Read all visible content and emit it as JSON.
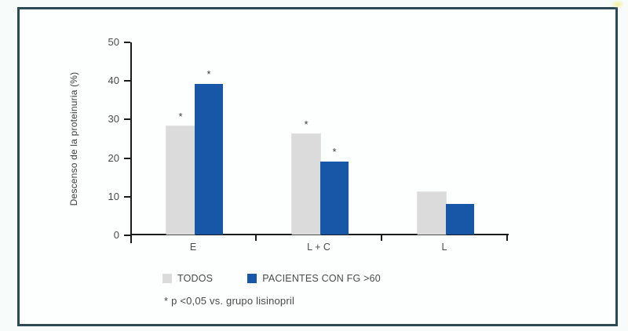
{
  "chart_data": {
    "type": "bar",
    "categories": [
      "E",
      "L + C",
      "L"
    ],
    "series": [
      {
        "name": "TODOS",
        "color": "#dbdbdb",
        "values": [
          28,
          26,
          11
        ],
        "significant": [
          true,
          true,
          false
        ]
      },
      {
        "name": "PACIENTES CON FG >60",
        "color": "#1856a8",
        "values": [
          39,
          19,
          8
        ],
        "significant": [
          true,
          true,
          false
        ]
      }
    ],
    "title": "",
    "xlabel": "",
    "ylabel": "Descenso de la proteinuria (%)",
    "ylim": [
      0,
      50
    ],
    "yticks": [
      0,
      10,
      20,
      30,
      40,
      50
    ],
    "grid": false,
    "legend_position": "bottom",
    "significance_marker": "*",
    "footnote": "* p <0,05 vs. grupo lisinopril"
  },
  "frame": {
    "border_color": "#2c4a54",
    "background": "#fdfefe"
  }
}
